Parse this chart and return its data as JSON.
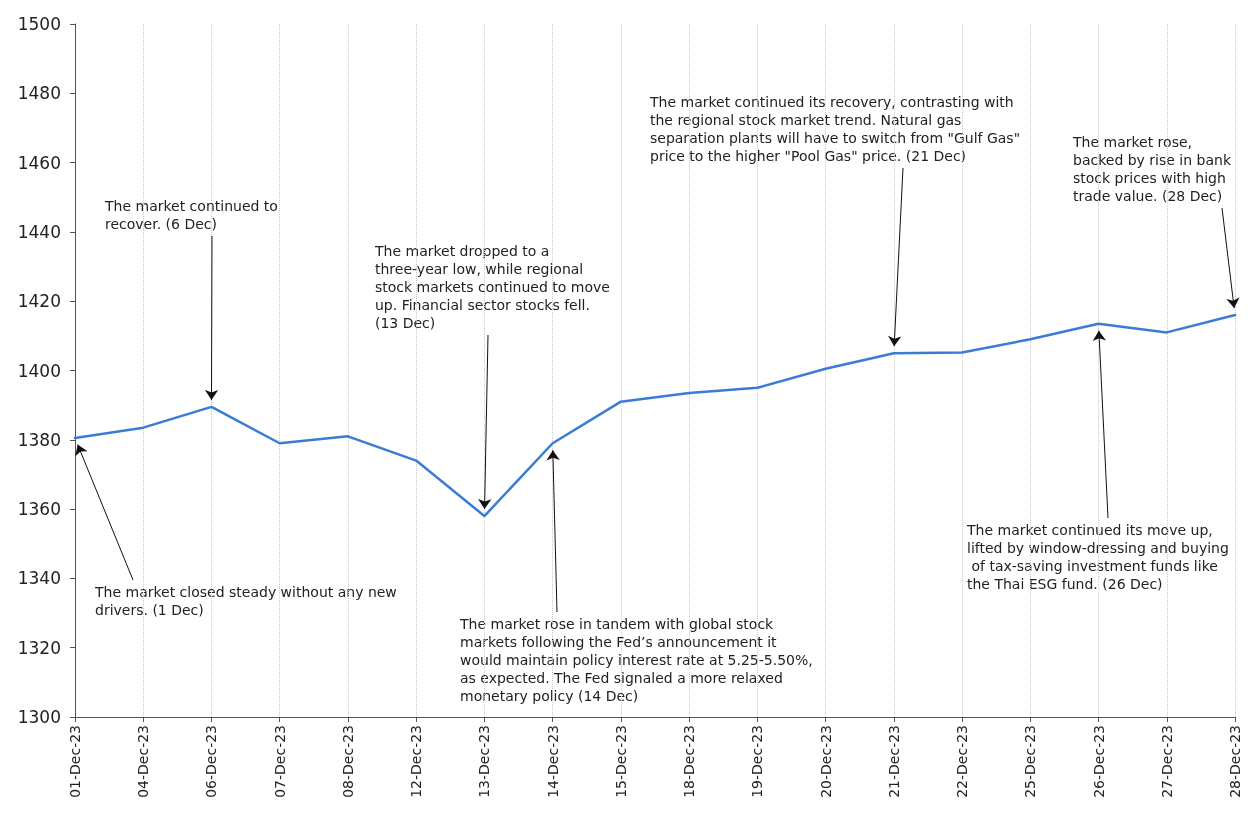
{
  "chart_data": {
    "type": "line",
    "categories": [
      "01-Dec-23",
      "04-Dec-23",
      "06-Dec-23",
      "07-Dec-23",
      "08-Dec-23",
      "12-Dec-23",
      "13-Dec-23",
      "14-Dec-23",
      "15-Dec-23",
      "18-Dec-23",
      "19-Dec-23",
      "20-Dec-23",
      "21-Dec-23",
      "22-Dec-23",
      "25-Dec-23",
      "26-Dec-23",
      "27-Dec-23",
      "28-Dec-23"
    ],
    "series": [
      {
        "color": "#3a7bd5",
        "values": [
          1380.5,
          1383.5,
          1389.5,
          1379,
          1381,
          1374,
          1358,
          1379,
          1391,
          1393.5,
          1395,
          1400.5,
          1405,
          1405.2,
          1409,
          1413.5,
          1411,
          1416
        ]
      }
    ],
    "ylim": [
      1300,
      1500
    ],
    "yticks": [
      1300,
      1320,
      1340,
      1360,
      1380,
      1400,
      1420,
      1440,
      1460,
      1480,
      1500
    ],
    "grid": "x",
    "marker": "none",
    "line_style": "solid",
    "annotations": [
      {
        "text": "The market closed steady without any new drivers. (1 Dec)",
        "x": "01-Dec-23",
        "y": 1380.5
      },
      {
        "text": "The market continued to recover. (6 Dec)",
        "x": "06-Dec-23",
        "y": 1389.5
      },
      {
        "text": "The market dropped to a three-year low, while regional stock markets continued to move up. Financial sector stocks fell. (13 Dec)",
        "x": "13-Dec-23",
        "y": 1358
      },
      {
        "text": "The market rose in tandem with global stock markets following the Fed’s announcement it would maintain policy interest rate at 5.25-5.50%, as expected. The Fed signaled a more relaxed monetary policy (14 Dec)",
        "x": "14-Dec-23",
        "y": 1379
      },
      {
        "text": "The market continued its recovery, contrasting with the regional stock market trend. Natural gas separation plants will have to switch from \"Gulf Gas\" price to the higher \"Pool Gas\" price. (21 Dec)",
        "x": "21-Dec-23",
        "y": 1405
      },
      {
        "text": "The market continued its move up, lifted by window-dressing and buying of tax-saving investment funds like the Thai ESG fund. (26 Dec)",
        "x": "26-Dec-23",
        "y": 1413.5
      },
      {
        "text": "The market rose, backed by rise in bank stock prices with high trade value. (28 Dec)",
        "x": "28-Dec-23",
        "y": 1416
      }
    ]
  }
}
